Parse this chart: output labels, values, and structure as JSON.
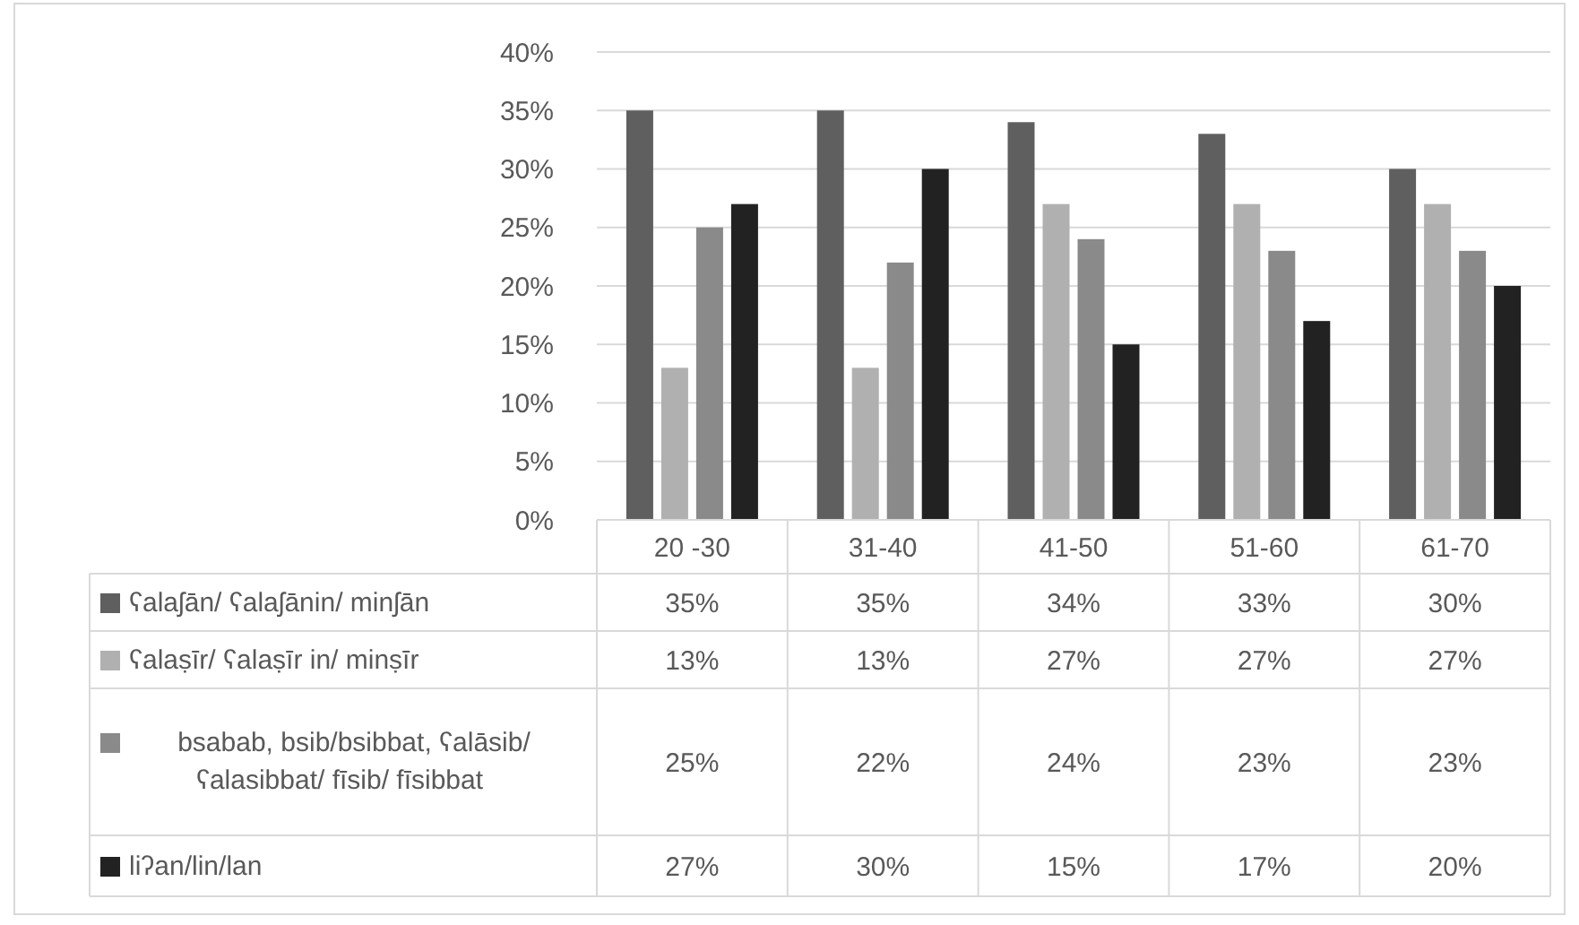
{
  "chart_data": {
    "type": "bar",
    "categories": [
      "20 -30",
      "31-40",
      "41-50",
      "51-60",
      "61-70"
    ],
    "series": [
      {
        "name": "ʕalaʃān/ ʕalaʃānin/ minʃān",
        "color": "#5f5f5f",
        "values": [
          35,
          35,
          34,
          33,
          30
        ],
        "value_labels": [
          "35%",
          "35%",
          "34%",
          "33%",
          "30%"
        ]
      },
      {
        "name": "ʕalaṣīr/ ʕalaṣīr in/ minṣīr",
        "color": "#b0b0b0",
        "values": [
          13,
          13,
          27,
          27,
          27
        ],
        "value_labels": [
          "13%",
          "13%",
          "27%",
          "27%",
          "27%"
        ]
      },
      {
        "name": "bsabab, bsib/bsibbat, ʕalāsib/ ʕalasibbat/ fīsib/ fīsibbat",
        "color": "#8a8a8a",
        "values": [
          25,
          22,
          24,
          23,
          23
        ],
        "value_labels": [
          "25%",
          "22%",
          "24%",
          "23%",
          "23%"
        ]
      },
      {
        "name": "liʔan/lin/lan",
        "color": "#222222",
        "values": [
          27,
          30,
          15,
          17,
          20
        ],
        "value_labels": [
          "27%",
          "30%",
          "15%",
          "17%",
          "20%"
        ]
      }
    ],
    "ylim": [
      0,
      40
    ],
    "yticks": [
      {
        "value": 0,
        "label": "0%"
      },
      {
        "value": 5,
        "label": "5%"
      },
      {
        "value": 10,
        "label": "10%"
      },
      {
        "value": 15,
        "label": "15%"
      },
      {
        "value": 20,
        "label": "20%"
      },
      {
        "value": 25,
        "label": "25%"
      },
      {
        "value": 30,
        "label": "30%"
      },
      {
        "value": 35,
        "label": "35%"
      },
      {
        "value": 40,
        "label": "40%"
      }
    ],
    "grid": "y",
    "legend": "bottom"
  }
}
